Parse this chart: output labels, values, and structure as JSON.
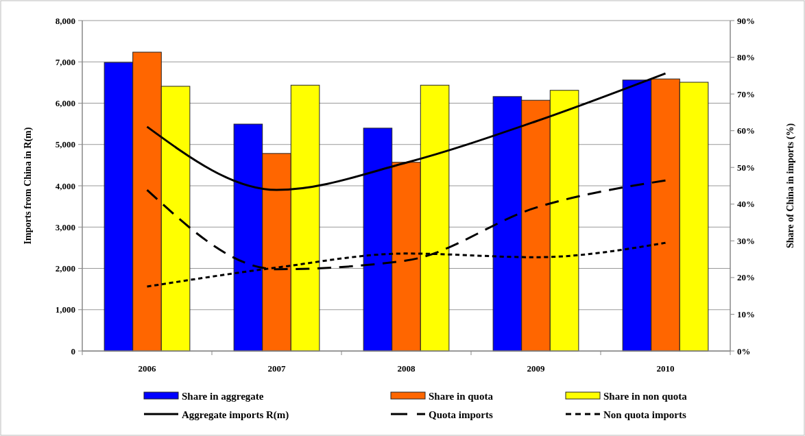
{
  "chart_data": {
    "type": "bar",
    "categories": [
      "2006",
      "2007",
      "2008",
      "2009",
      "2010"
    ],
    "ylabel": "Imports from China in R(m)",
    "y2label": "Share of China in imports (%)",
    "ylim": [
      0,
      8000
    ],
    "yticks": [
      {
        "value": 0,
        "label": "0"
      },
      {
        "value": 1000,
        "label": "1,000"
      },
      {
        "value": 2000,
        "label": "2,000"
      },
      {
        "value": 3000,
        "label": "3,000"
      },
      {
        "value": 4000,
        "label": "4,000"
      },
      {
        "value": 5000,
        "label": "5,000"
      },
      {
        "value": 6000,
        "label": "6,000"
      },
      {
        "value": 7000,
        "label": "7,000"
      },
      {
        "value": 8000,
        "label": "8,000"
      }
    ],
    "y2lim": [
      0,
      90
    ],
    "y2ticks": [
      {
        "value": 0,
        "label": "0%"
      },
      {
        "value": 10,
        "label": "10%"
      },
      {
        "value": 20,
        "label": "20%"
      },
      {
        "value": 30,
        "label": "30%"
      },
      {
        "value": 40,
        "label": "40%"
      },
      {
        "value": 50,
        "label": "50%"
      },
      {
        "value": 60,
        "label": "60%"
      },
      {
        "value": 70,
        "label": "70%"
      },
      {
        "value": 80,
        "label": "80%"
      },
      {
        "value": 90,
        "label": "90%"
      }
    ],
    "grid": "y",
    "legend": "bottom",
    "series": [
      {
        "name": "Share in aggregate",
        "axis": "y2",
        "color": "#0000ff",
        "values": [
          78.6,
          61.8,
          60.7,
          69.3,
          73.8
        ]
      },
      {
        "name": "Share in quota",
        "axis": "y2",
        "color": "#ff6600",
        "values": [
          81.4,
          53.8,
          51.4,
          68.3,
          74.1
        ]
      },
      {
        "name": "Share in non quota",
        "axis": "y2",
        "color": "#ffff00",
        "values": [
          72.1,
          72.4,
          72.4,
          71.0,
          73.2
        ]
      },
      {
        "name": "Aggregate imports R(m)",
        "type": "line",
        "color": "#000000",
        "line_style": "solid",
        "values": [
          5430,
          3900,
          4560,
          5560,
          6720
        ]
      },
      {
        "name": "Quota imports",
        "type": "line",
        "color": "#000000",
        "line_style": "dashed",
        "values": [
          3900,
          1980,
          2190,
          3470,
          4130
        ]
      },
      {
        "name": "Non quota imports",
        "type": "line",
        "color": "#000000",
        "line_style": "dotted",
        "values": [
          1560,
          2020,
          2360,
          2270,
          2620
        ]
      }
    ]
  }
}
